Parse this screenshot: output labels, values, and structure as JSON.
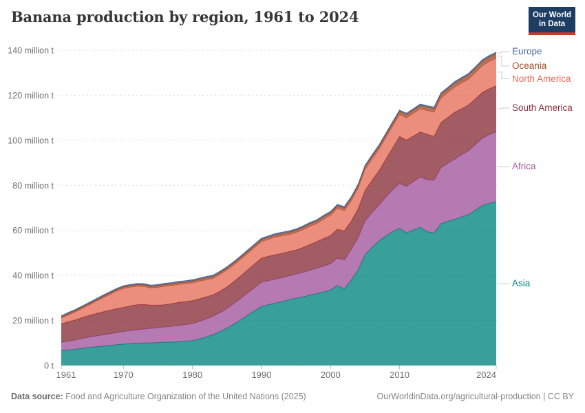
{
  "header": {
    "title": "Banana production by region, 1961 to 2024",
    "logo": {
      "line1": "Our World",
      "line2": "in Data",
      "bg_color": "#1D3D63",
      "accent_color": "#C23B2B"
    }
  },
  "footer": {
    "source_label": "Data source:",
    "source_text": " Food and Agriculture Organization of the United Nations (2025)",
    "credit": "OurWorldinData.org/agricultural-production | CC BY"
  },
  "chart_data": {
    "type": "area",
    "stacked": true,
    "title": "Banana production by region, 1961 to 2024",
    "unit": "million t",
    "ylim": [
      0,
      140
    ],
    "grid": true,
    "legend_position": "right",
    "x": [
      1961,
      1962,
      1963,
      1964,
      1965,
      1966,
      1967,
      1968,
      1969,
      1970,
      1971,
      1972,
      1973,
      1974,
      1975,
      1976,
      1977,
      1978,
      1979,
      1980,
      1981,
      1982,
      1983,
      1984,
      1985,
      1986,
      1987,
      1988,
      1989,
      1990,
      1991,
      1992,
      1993,
      1994,
      1995,
      1996,
      1997,
      1998,
      1999,
      2000,
      2001,
      2002,
      2003,
      2004,
      2005,
      2006,
      2007,
      2008,
      2009,
      2010,
      2011,
      2012,
      2013,
      2014,
      2015,
      2016,
      2017,
      2018,
      2019,
      2020,
      2021,
      2022,
      2023,
      2024
    ],
    "series": [
      {
        "name": "Asia",
        "color": "#00847E",
        "values": [
          6.6,
          6.9,
          7.2,
          7.6,
          8.0,
          8.3,
          8.6,
          8.9,
          9.2,
          9.5,
          9.7,
          9.9,
          10.0,
          10.1,
          10.2,
          10.3,
          10.4,
          10.6,
          10.8,
          11.0,
          11.8,
          12.7,
          13.7,
          15.1,
          16.6,
          18.4,
          20.3,
          22.3,
          24.3,
          26.3,
          27.0,
          27.7,
          28.4,
          29.2,
          29.9,
          30.5,
          31.2,
          31.9,
          32.7,
          33.5,
          35.5,
          34.0,
          38.0,
          42.5,
          49.2,
          52.5,
          55.3,
          57.5,
          59.5,
          60.9,
          58.9,
          60.2,
          61.4,
          59.4,
          58.8,
          63.0,
          64.0,
          65.0,
          66.0,
          67.0,
          69.0,
          71.1,
          72.0,
          72.7
        ]
      },
      {
        "name": "Africa",
        "color": "#A2559C",
        "values": [
          3.7,
          3.9,
          4.1,
          4.35,
          4.6,
          4.8,
          5.0,
          5.2,
          5.4,
          5.6,
          5.8,
          6.0,
          6.2,
          6.4,
          6.6,
          6.8,
          7.0,
          7.2,
          7.4,
          7.6,
          7.8,
          8.0,
          8.2,
          8.45,
          8.7,
          9.1,
          9.5,
          9.9,
          10.3,
          10.7,
          10.7,
          10.6,
          10.6,
          10.65,
          10.7,
          10.9,
          11.1,
          11.3,
          11.5,
          11.7,
          12.2,
          12.8,
          13.6,
          14.3,
          15.0,
          15.4,
          15.8,
          17.2,
          18.6,
          19.9,
          20.7,
          21.5,
          22.3,
          23.1,
          23.5,
          24.9,
          25.8,
          26.7,
          27.6,
          28.4,
          29.2,
          29.9,
          30.5,
          31.1
        ]
      },
      {
        "name": "South America",
        "color": "#883039",
        "values": [
          8.2,
          8.6,
          8.9,
          9.3,
          9.6,
          9.9,
          10.2,
          10.4,
          10.6,
          10.7,
          11.0,
          11.1,
          10.9,
          10.3,
          10.0,
          9.9,
          10.1,
          10.2,
          10.2,
          10.2,
          10.0,
          9.8,
          9.5,
          9.5,
          9.6,
          9.8,
          10.0,
          10.3,
          10.5,
          10.7,
          10.8,
          10.9,
          10.8,
          10.7,
          10.7,
          11.0,
          11.4,
          11.8,
          12.2,
          12.5,
          12.8,
          13.0,
          12.5,
          12.8,
          13.5,
          14.3,
          15.3,
          16.8,
          18.5,
          20.9,
          20.5,
          20.2,
          20.0,
          20.2,
          19.5,
          20.0,
          20.4,
          20.8,
          20.5,
          20.3,
          20.2,
          20.3,
          20.4,
          20.4
        ]
      },
      {
        "name": "North America",
        "color": "#E56E5A",
        "values": [
          2.5,
          3.0,
          3.5,
          4.0,
          4.6,
          5.4,
          6.2,
          7.0,
          7.8,
          8.4,
          8.3,
          8.2,
          8.0,
          7.6,
          7.9,
          8.2,
          8.0,
          8.0,
          7.9,
          7.9,
          7.8,
          7.6,
          7.3,
          7.4,
          7.5,
          7.4,
          7.4,
          7.3,
          7.3,
          7.3,
          7.5,
          7.8,
          7.8,
          7.6,
          7.7,
          7.9,
          8.1,
          8.0,
          8.6,
          9.0,
          9.3,
          9.0,
          9.0,
          9.1,
          9.3,
          9.4,
          9.5,
          9.6,
          9.7,
          9.7,
          9.9,
          10.1,
          10.3,
          10.5,
          10.7,
          10.9,
          11.0,
          11.2,
          11.4,
          11.5,
          11.7,
          11.9,
          12.1,
          12.2
        ]
      },
      {
        "name": "Oceania",
        "color": "#A04B27",
        "values": [
          0.6,
          0.62,
          0.63,
          0.65,
          0.66,
          0.67,
          0.68,
          0.69,
          0.7,
          0.7,
          0.72,
          0.74,
          0.76,
          0.78,
          0.8,
          0.82,
          0.84,
          0.86,
          0.88,
          0.9,
          0.91,
          0.92,
          0.93,
          0.94,
          0.95,
          0.96,
          0.97,
          0.98,
          0.99,
          1.0,
          1.02,
          1.04,
          1.06,
          1.08,
          1.1,
          1.12,
          1.14,
          1.16,
          1.18,
          1.2,
          1.22,
          1.25,
          1.27,
          1.3,
          1.32,
          1.35,
          1.38,
          1.41,
          1.44,
          1.47,
          1.5,
          1.53,
          1.56,
          1.6,
          1.65,
          1.7,
          1.75,
          1.8,
          1.85,
          1.9,
          1.95,
          2.0,
          2.05,
          2.1
        ]
      },
      {
        "name": "Europe",
        "color": "#4C6A9C",
        "values": [
          0.45,
          0.45,
          0.45,
          0.45,
          0.45,
          0.45,
          0.45,
          0.45,
          0.45,
          0.45,
          0.44,
          0.44,
          0.44,
          0.44,
          0.44,
          0.44,
          0.44,
          0.44,
          0.44,
          0.45,
          0.45,
          0.45,
          0.45,
          0.45,
          0.45,
          0.46,
          0.46,
          0.46,
          0.47,
          0.5,
          0.5,
          0.5,
          0.5,
          0.5,
          0.5,
          0.5,
          0.5,
          0.5,
          0.5,
          0.5,
          0.5,
          0.5,
          0.5,
          0.5,
          0.5,
          0.5,
          0.5,
          0.5,
          0.5,
          0.5,
          0.5,
          0.5,
          0.52,
          0.54,
          0.55,
          0.56,
          0.57,
          0.58,
          0.58,
          0.59,
          0.6,
          0.6,
          0.6,
          0.6
        ]
      }
    ],
    "y_ticks": [
      {
        "value": 0,
        "label": "0 t"
      },
      {
        "value": 20,
        "label": "20 million t"
      },
      {
        "value": 40,
        "label": "40 million t"
      },
      {
        "value": 60,
        "label": "60 million t"
      },
      {
        "value": 80,
        "label": "80 million t"
      },
      {
        "value": 100,
        "label": "100 million t"
      },
      {
        "value": 120,
        "label": "120 million t"
      },
      {
        "value": 140,
        "label": "140 million t"
      }
    ],
    "x_ticks": [
      1961,
      1970,
      1980,
      1990,
      2000,
      2010,
      2024
    ],
    "legend": [
      "Europe",
      "Oceania",
      "North America",
      "South America",
      "Africa",
      "Asia"
    ]
  }
}
